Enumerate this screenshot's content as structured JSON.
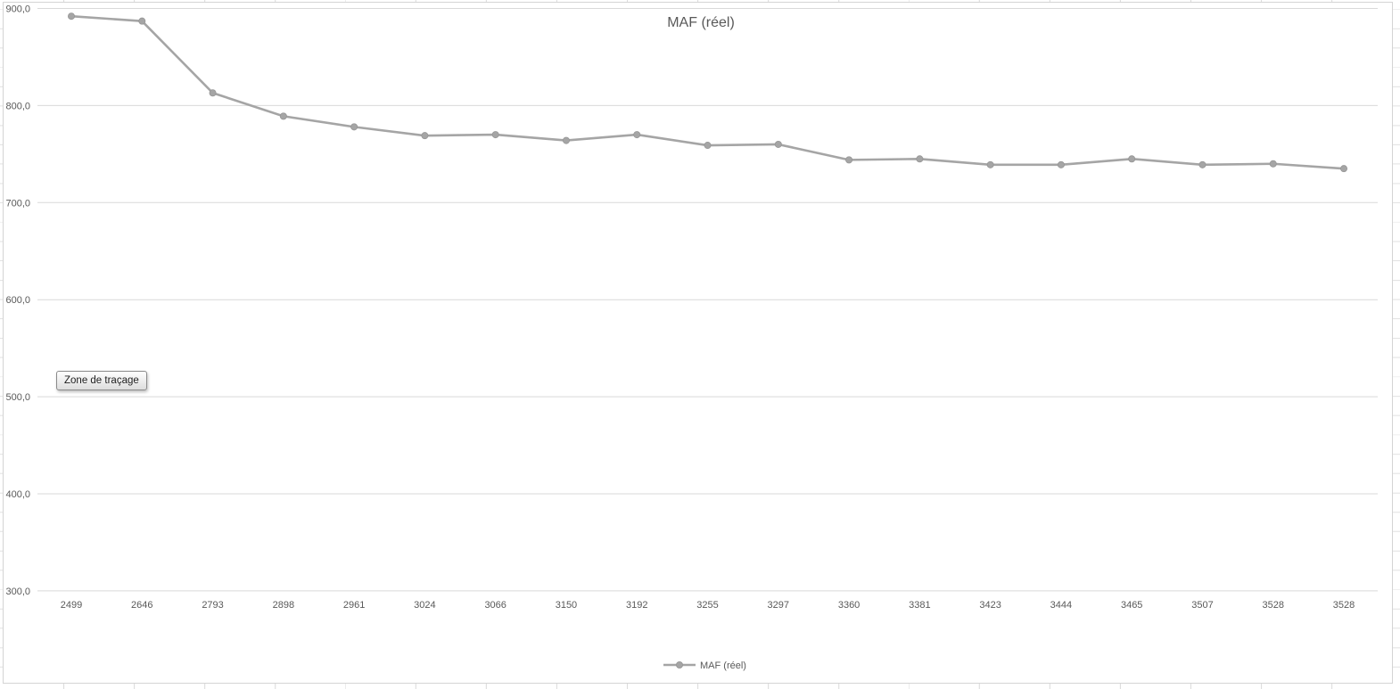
{
  "tooltip": {
    "label": "Zone de traçage"
  },
  "chart_data": {
    "type": "line",
    "title": "MAF (réel)",
    "categories": [
      "2499",
      "2646",
      "2793",
      "2898",
      "2961",
      "3024",
      "3066",
      "3150",
      "3192",
      "3255",
      "3297",
      "3360",
      "3381",
      "3423",
      "3444",
      "3465",
      "3507",
      "3528",
      "3528"
    ],
    "series": [
      {
        "name": "MAF (réel)",
        "color": "#a5a5a5",
        "values": [
          892,
          887,
          813,
          789,
          778,
          769,
          770,
          764,
          770,
          759,
          760,
          744,
          745,
          739,
          739,
          745,
          739,
          740,
          735
        ]
      }
    ],
    "y_axis": {
      "min": 300,
      "max": 900,
      "step": 100,
      "tick_labels": [
        "900,0",
        "800,0",
        "700,0",
        "600,0",
        "500,0",
        "400,0",
        "300,0"
      ]
    },
    "x_axis": {
      "label_format": "category"
    },
    "grid": true,
    "legend_position": "bottom",
    "colors": {
      "text": "#595959",
      "gridline": "#d9d9d9",
      "axis_line": "#d9d9d9"
    }
  }
}
